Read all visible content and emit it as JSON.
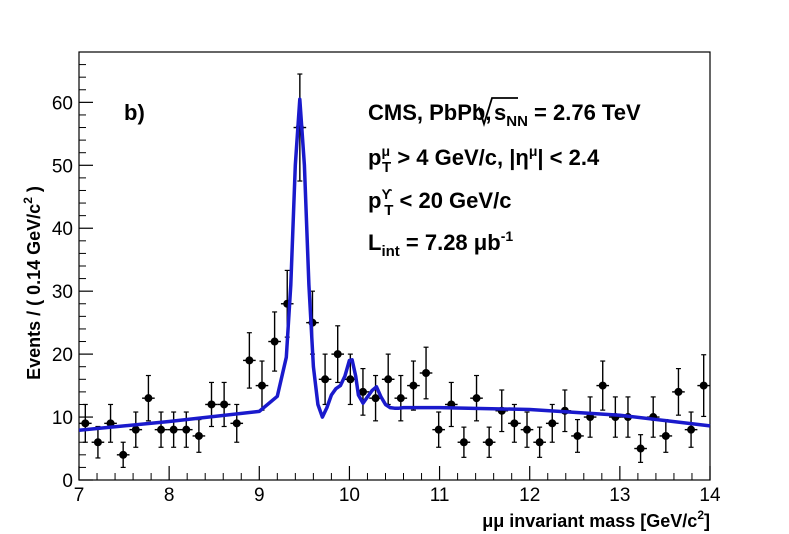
{
  "chart_data": {
    "type": "scatter",
    "xlim": [
      7,
      14
    ],
    "ylim": [
      0,
      68
    ],
    "x_ticks": [
      7,
      8,
      9,
      10,
      11,
      12,
      13,
      14
    ],
    "y_ticks": [
      0,
      10,
      20,
      30,
      40,
      50,
      60
    ],
    "x_ticks_text": [
      "7",
      "8",
      "9",
      "10",
      "11",
      "12",
      "13",
      "14"
    ],
    "y_ticks_text": [
      "0",
      "10",
      "20",
      "30",
      "40",
      "50",
      "60"
    ],
    "ylabel": {
      "prefix": "Events / ( 0.14 GeV/c",
      "sup": "2",
      "suffix": " )"
    },
    "xlabel": {
      "prefix": "μμ invariant mass [GeV/c",
      "sup": "2",
      "suffix": "]"
    },
    "panel_label": "b)",
    "annotations": {
      "line1": {
        "a": "CMS, PbPb,",
        "b": "s",
        "c": "NN",
        "d": " = 2.76 TeV"
      },
      "line2": {
        "a": "p",
        "b": "μ",
        "c": "T",
        "d": " > 4 GeV/c, |η",
        "e": "μ",
        "f": "| < 2.4"
      },
      "line3": {
        "a": "p",
        "b": "ϒ",
        "c": "T",
        "d": " < 20 GeV/c"
      },
      "line4": {
        "a": "L",
        "b": "int",
        "c": " = 7.28 μb",
        "d": "-1"
      }
    },
    "bin_half_width": 0.07,
    "series": [
      {
        "name": "data",
        "marker": "circle",
        "color": "#000000",
        "x": [
          7.07,
          7.21,
          7.35,
          7.49,
          7.63,
          7.77,
          7.91,
          8.05,
          8.19,
          8.33,
          8.47,
          8.61,
          8.75,
          8.89,
          9.03,
          9.17,
          9.31,
          9.45,
          9.59,
          9.73,
          9.87,
          10.01,
          10.15,
          10.29,
          10.43,
          10.57,
          10.71,
          10.85,
          10.99,
          11.13,
          11.27,
          11.41,
          11.55,
          11.69,
          11.83,
          11.97,
          12.11,
          12.25,
          12.39,
          12.53,
          12.67,
          12.81,
          12.95,
          13.09,
          13.23,
          13.37,
          13.51,
          13.65,
          13.79,
          13.93
        ],
        "y": [
          9,
          6,
          9,
          4,
          8,
          13,
          8,
          8,
          8,
          7,
          12,
          12,
          9,
          19,
          15,
          22,
          28,
          56,
          25,
          16,
          20,
          16,
          14,
          13,
          16,
          13,
          15,
          17,
          8,
          12,
          6,
          13,
          6,
          11,
          9,
          8,
          6,
          9,
          11,
          7,
          10,
          15,
          10,
          10,
          5,
          10,
          7,
          14,
          8,
          15
        ],
        "yerr": [
          3,
          2.5,
          3,
          2,
          2.8,
          3.6,
          2.8,
          2.8,
          2.8,
          2.6,
          3.5,
          3.5,
          3,
          4.4,
          3.9,
          4.7,
          5.3,
          8.5,
          5,
          4,
          4.5,
          4,
          3.7,
          3.6,
          4,
          3.6,
          3.9,
          4.1,
          2.8,
          3.5,
          2.4,
          3.6,
          2.4,
          3.3,
          3,
          2.8,
          2.4,
          3,
          3.3,
          2.6,
          3.2,
          3.9,
          3.2,
          3.2,
          2.2,
          3.2,
          2.6,
          3.7,
          2.8,
          4.9
        ]
      },
      {
        "name": "fit",
        "type": "line",
        "color": "#1a1acc",
        "x": [
          7.0,
          8.0,
          9.0,
          9.2,
          9.3,
          9.35,
          9.4,
          9.45,
          9.5,
          9.55,
          9.6,
          9.65,
          9.7,
          9.75,
          9.8,
          9.85,
          9.9,
          9.95,
          10.0,
          10.03,
          10.07,
          10.1,
          10.15,
          10.2,
          10.25,
          10.3,
          10.35,
          10.4,
          10.45,
          10.5,
          10.55,
          10.6,
          11.0,
          12.0,
          13.0,
          14.0
        ],
        "y": [
          7.9,
          9.3,
          10.9,
          13.3,
          19.5,
          31,
          50,
          60.5,
          50,
          31,
          18,
          12,
          10,
          11.5,
          13.5,
          14.5,
          15,
          16.5,
          19,
          19.1,
          16.5,
          13.5,
          12.2,
          13.2,
          14.2,
          14.8,
          13.2,
          12,
          11.5,
          11.4,
          11.4,
          11.5,
          11.5,
          11.2,
          10.3,
          8.6
        ]
      }
    ]
  }
}
